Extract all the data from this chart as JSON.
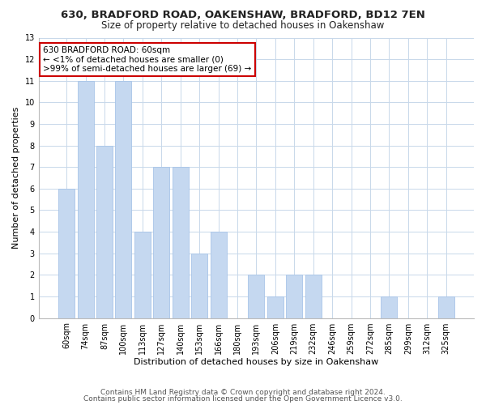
{
  "title": "630, BRADFORD ROAD, OAKENSHAW, BRADFORD, BD12 7EN",
  "subtitle": "Size of property relative to detached houses in Oakenshaw",
  "xlabel": "Distribution of detached houses by size in Oakenshaw",
  "ylabel": "Number of detached properties",
  "categories": [
    "60sqm",
    "74sqm",
    "87sqm",
    "100sqm",
    "113sqm",
    "127sqm",
    "140sqm",
    "153sqm",
    "166sqm",
    "180sqm",
    "193sqm",
    "206sqm",
    "219sqm",
    "232sqm",
    "246sqm",
    "259sqm",
    "272sqm",
    "285sqm",
    "299sqm",
    "312sqm",
    "325sqm"
  ],
  "values": [
    6,
    11,
    8,
    11,
    4,
    7,
    7,
    3,
    4,
    0,
    2,
    1,
    2,
    2,
    0,
    0,
    0,
    1,
    0,
    0,
    1
  ],
  "bar_color": "#c5d8f0",
  "bar_edge_color": "#a8c4e8",
  "annotation_box_text": "630 BRADFORD ROAD: 60sqm\n← <1% of detached houses are smaller (0)\n>99% of semi-detached houses are larger (69) →",
  "annotation_box_edgecolor": "#cc0000",
  "annotation_box_facecolor": "#ffffff",
  "ylim": [
    0,
    13
  ],
  "yticks": [
    0,
    1,
    2,
    3,
    4,
    5,
    6,
    7,
    8,
    9,
    10,
    11,
    12,
    13
  ],
  "footer_line1": "Contains HM Land Registry data © Crown copyright and database right 2024.",
  "footer_line2": "Contains public sector information licensed under the Open Government Licence v3.0.",
  "background_color": "#ffffff",
  "grid_color": "#c8d8ea",
  "title_fontsize": 9.5,
  "subtitle_fontsize": 8.5,
  "axis_label_fontsize": 8,
  "tick_fontsize": 7,
  "footer_fontsize": 6.5,
  "annotation_fontsize": 7.5
}
